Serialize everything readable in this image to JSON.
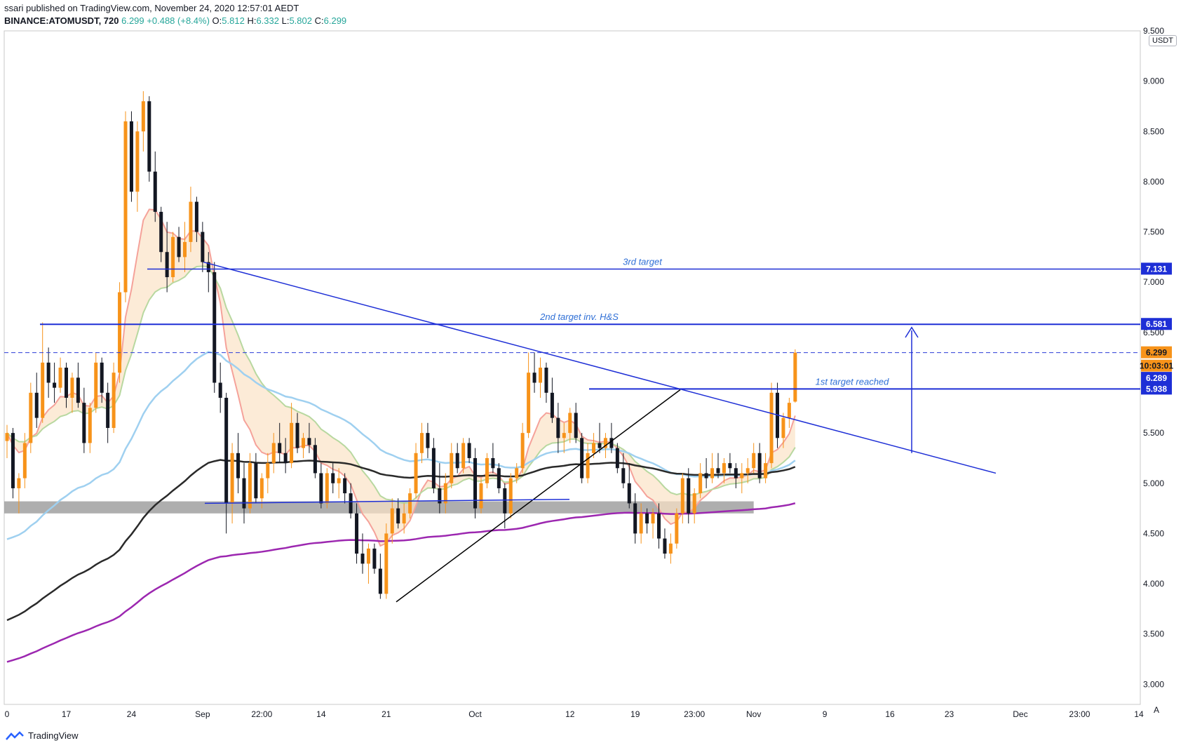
{
  "header": {
    "line1": "ssari published on TradingView.com, November 24, 2020 12:57:01 AEDT",
    "symbol": "BINANCE:ATOMUSDT, 720",
    "price": "6.299",
    "change": "+0.488 (+8.4%)",
    "ohlc": [
      {
        "label": "O:",
        "value": "5.812"
      },
      {
        "label": "H:",
        "value": "6.332"
      },
      {
        "label": "L:",
        "value": "5.802"
      },
      {
        "label": "C:",
        "value": "6.299"
      }
    ]
  },
  "footer": {
    "brand": "TradingView"
  },
  "axis_badges": {
    "currency": "USDT",
    "auto": "A"
  },
  "colors": {
    "up": "#f7931a",
    "down": "#131722",
    "blue_line": "#1e2fd6",
    "ema_light_blue": "#9fd0f0",
    "ema_black": "#2a2a2a",
    "ema_purple": "#9c27b0",
    "ribbon_red": "#f5a29a",
    "ribbon_green": "#b8d8a0",
    "ribbon_fill": "#fbe3c6",
    "support_band": "#a0a0a0"
  },
  "chart_data": {
    "type": "candlestick",
    "title": "",
    "ylim": [
      2.8,
      9.5
    ],
    "yticks": [
      3.0,
      3.5,
      4.0,
      4.5,
      5.0,
      5.5,
      6.0,
      6.5,
      7.0,
      7.5,
      8.0,
      8.5,
      9.0,
      9.5
    ],
    "ytick_labels": [
      "3.000",
      "3.500",
      "4.000",
      "4.500",
      "5.000",
      "5.500",
      "6.000",
      "6.500",
      "7.000",
      "7.500",
      "8.000",
      "8.500",
      "9.000",
      "9.500"
    ],
    "xlim": [
      0,
      193
    ],
    "xticks": [
      {
        "i": 0,
        "label": "0"
      },
      {
        "i": 10,
        "label": "17"
      },
      {
        "i": 21,
        "label": "24"
      },
      {
        "i": 33,
        "label": "Sep"
      },
      {
        "i": 43,
        "label": "22:00"
      },
      {
        "i": 53,
        "label": "14"
      },
      {
        "i": 64,
        "label": "21"
      },
      {
        "i": 79,
        "label": "Oct"
      },
      {
        "i": 95,
        "label": "12"
      },
      {
        "i": 106,
        "label": "19"
      },
      {
        "i": 116,
        "label": "23:00"
      },
      {
        "i": 126,
        "label": "Nov"
      },
      {
        "i": 138,
        "label": "9"
      },
      {
        "i": 149,
        "label": "16"
      },
      {
        "i": 159,
        "label": "23"
      },
      {
        "i": 171,
        "label": "Dec"
      },
      {
        "i": 181,
        "label": "23:00"
      },
      {
        "i": 191,
        "label": "14"
      }
    ],
    "candles": [
      [
        5.42,
        5.58,
        5.25,
        5.5
      ],
      [
        5.5,
        5.55,
        4.85,
        4.95
      ],
      [
        4.95,
        5.1,
        4.7,
        5.05
      ],
      [
        5.05,
        5.5,
        4.95,
        5.4
      ],
      [
        5.4,
        6.0,
        5.3,
        5.9
      ],
      [
        5.9,
        6.1,
        5.55,
        5.65
      ],
      [
        5.65,
        6.6,
        5.6,
        6.2
      ],
      [
        6.2,
        6.35,
        5.85,
        6.0
      ],
      [
        6.0,
        6.2,
        5.8,
        5.95
      ],
      [
        5.95,
        6.25,
        5.9,
        6.15
      ],
      [
        6.15,
        6.2,
        5.75,
        5.85
      ],
      [
        5.85,
        6.1,
        5.7,
        6.05
      ],
      [
        6.05,
        6.2,
        5.75,
        5.8
      ],
      [
        5.8,
        5.95,
        5.3,
        5.4
      ],
      [
        5.4,
        5.8,
        5.3,
        5.75
      ],
      [
        5.75,
        6.3,
        5.7,
        6.2
      ],
      [
        6.2,
        6.25,
        5.8,
        5.9
      ],
      [
        5.9,
        6.0,
        5.4,
        5.55
      ],
      [
        5.55,
        6.2,
        5.5,
        6.1
      ],
      [
        6.1,
        7.0,
        6.0,
        6.9
      ],
      [
        6.9,
        8.7,
        6.8,
        8.6
      ],
      [
        8.6,
        8.7,
        7.8,
        7.9
      ],
      [
        7.9,
        8.6,
        7.7,
        8.5
      ],
      [
        8.5,
        8.9,
        8.3,
        8.8
      ],
      [
        8.8,
        8.85,
        8.0,
        8.1
      ],
      [
        8.1,
        8.3,
        7.6,
        7.7
      ],
      [
        7.7,
        7.75,
        7.2,
        7.3
      ],
      [
        7.3,
        7.6,
        6.9,
        7.05
      ],
      [
        7.05,
        7.5,
        7.0,
        7.45
      ],
      [
        7.45,
        7.55,
        7.2,
        7.25
      ],
      [
        7.25,
        7.6,
        7.1,
        7.4
      ],
      [
        7.4,
        7.95,
        7.3,
        7.8
      ],
      [
        7.8,
        7.85,
        7.4,
        7.5
      ],
      [
        7.5,
        7.6,
        7.1,
        7.2
      ],
      [
        7.2,
        7.3,
        6.9,
        7.1
      ],
      [
        7.1,
        7.2,
        5.9,
        6.0
      ],
      [
        6.0,
        6.2,
        5.7,
        5.85
      ],
      [
        5.85,
        5.9,
        4.5,
        4.8
      ],
      [
        4.8,
        5.4,
        4.6,
        5.3
      ],
      [
        5.3,
        5.5,
        4.9,
        5.05
      ],
      [
        5.05,
        5.2,
        4.6,
        4.75
      ],
      [
        4.75,
        5.3,
        4.7,
        5.2
      ],
      [
        5.2,
        5.3,
        4.8,
        4.85
      ],
      [
        4.85,
        5.1,
        4.75,
        5.05
      ],
      [
        5.05,
        5.3,
        4.9,
        5.2
      ],
      [
        5.2,
        5.5,
        5.1,
        5.4
      ],
      [
        5.4,
        5.6,
        5.2,
        5.3
      ],
      [
        5.3,
        5.45,
        5.1,
        5.2
      ],
      [
        5.2,
        5.8,
        5.15,
        5.6
      ],
      [
        5.6,
        5.7,
        5.3,
        5.35
      ],
      [
        5.35,
        5.5,
        5.25,
        5.45
      ],
      [
        5.45,
        5.6,
        5.3,
        5.38
      ],
      [
        5.38,
        5.45,
        5.05,
        5.1
      ],
      [
        5.1,
        5.2,
        4.75,
        4.8
      ],
      [
        4.8,
        5.15,
        4.75,
        5.1
      ],
      [
        5.1,
        5.2,
        4.9,
        5.0
      ],
      [
        5.0,
        5.15,
        4.85,
        5.05
      ],
      [
        5.05,
        5.1,
        4.8,
        4.9
      ],
      [
        4.9,
        5.0,
        4.65,
        4.7
      ],
      [
        4.7,
        4.8,
        4.2,
        4.3
      ],
      [
        4.3,
        4.5,
        4.1,
        4.2
      ],
      [
        4.2,
        4.4,
        4.0,
        4.35
      ],
      [
        4.35,
        4.4,
        4.1,
        4.15
      ],
      [
        4.15,
        4.3,
        3.85,
        3.9
      ],
      [
        3.9,
        4.6,
        3.85,
        4.5
      ],
      [
        4.5,
        4.85,
        4.4,
        4.75
      ],
      [
        4.75,
        4.85,
        4.55,
        4.6
      ],
      [
        4.6,
        4.8,
        4.5,
        4.7
      ],
      [
        4.7,
        4.95,
        4.65,
        4.9
      ],
      [
        4.9,
        5.4,
        4.85,
        5.3
      ],
      [
        5.3,
        5.6,
        5.2,
        5.5
      ],
      [
        5.5,
        5.6,
        5.25,
        5.35
      ],
      [
        5.35,
        5.45,
        4.9,
        4.95
      ],
      [
        4.95,
        5.2,
        4.7,
        4.8
      ],
      [
        4.8,
        5.1,
        4.7,
        5.0
      ],
      [
        5.0,
        5.4,
        4.95,
        5.3
      ],
      [
        5.3,
        5.4,
        5.1,
        5.15
      ],
      [
        5.15,
        5.45,
        5.1,
        5.4
      ],
      [
        5.4,
        5.45,
        5.2,
        5.25
      ],
      [
        5.25,
        5.35,
        4.65,
        4.75
      ],
      [
        4.75,
        5.05,
        4.7,
        5.0
      ],
      [
        5.0,
        5.3,
        4.95,
        5.25
      ],
      [
        5.25,
        5.4,
        5.1,
        5.15
      ],
      [
        5.15,
        5.2,
        4.9,
        4.95
      ],
      [
        4.95,
        5.0,
        4.55,
        4.7
      ],
      [
        4.7,
        5.1,
        4.65,
        5.05
      ],
      [
        5.05,
        5.2,
        5.0,
        5.15
      ],
      [
        5.15,
        5.6,
        5.1,
        5.5
      ],
      [
        5.5,
        6.3,
        5.45,
        6.1
      ],
      [
        6.1,
        6.3,
        5.9,
        6.0
      ],
      [
        6.0,
        6.25,
        5.85,
        6.15
      ],
      [
        6.15,
        6.2,
        5.8,
        5.9
      ],
      [
        5.9,
        6.05,
        5.6,
        5.65
      ],
      [
        5.65,
        5.8,
        5.3,
        5.45
      ],
      [
        5.45,
        5.6,
        5.3,
        5.5
      ],
      [
        5.5,
        5.75,
        5.4,
        5.7
      ],
      [
        5.7,
        5.8,
        5.4,
        5.45
      ],
      [
        5.45,
        5.5,
        5.0,
        5.05
      ],
      [
        5.05,
        5.4,
        5.0,
        5.3
      ],
      [
        5.3,
        5.5,
        5.25,
        5.4
      ],
      [
        5.4,
        5.6,
        5.3,
        5.35
      ],
      [
        5.35,
        5.5,
        5.25,
        5.45
      ],
      [
        5.45,
        5.6,
        5.3,
        5.35
      ],
      [
        5.35,
        5.4,
        5.1,
        5.15
      ],
      [
        5.15,
        5.3,
        4.95,
        5.0
      ],
      [
        5.0,
        5.2,
        4.75,
        4.8
      ],
      [
        4.8,
        4.9,
        4.4,
        4.5
      ],
      [
        4.5,
        4.8,
        4.4,
        4.7
      ],
      [
        4.7,
        4.75,
        4.5,
        4.6
      ],
      [
        4.6,
        4.75,
        4.45,
        4.7
      ],
      [
        4.7,
        4.8,
        4.35,
        4.45
      ],
      [
        4.45,
        4.55,
        4.25,
        4.3
      ],
      [
        4.3,
        4.5,
        4.2,
        4.4
      ],
      [
        4.4,
        4.75,
        4.35,
        4.7
      ],
      [
        4.7,
        5.1,
        4.6,
        5.05
      ],
      [
        5.05,
        5.15,
        4.6,
        4.7
      ],
      [
        4.7,
        4.95,
        4.6,
        4.9
      ],
      [
        4.9,
        5.2,
        4.85,
        5.1
      ],
      [
        5.1,
        5.25,
        4.95,
        5.05
      ],
      [
        5.05,
        5.3,
        5.0,
        5.15
      ],
      [
        5.15,
        5.3,
        5.05,
        5.1
      ],
      [
        5.1,
        5.25,
        5.0,
        5.2
      ],
      [
        5.2,
        5.3,
        5.1,
        5.15
      ],
      [
        5.15,
        5.2,
        4.95,
        5.05
      ],
      [
        5.05,
        5.2,
        4.9,
        5.1
      ],
      [
        5.1,
        5.25,
        5.0,
        5.15
      ],
      [
        5.15,
        5.4,
        5.1,
        5.3
      ],
      [
        5.3,
        5.4,
        5.0,
        5.05
      ],
      [
        5.05,
        5.3,
        5.0,
        5.2
      ],
      [
        5.2,
        6.0,
        5.15,
        5.9
      ],
      [
        5.9,
        6.0,
        5.35,
        5.45
      ],
      [
        5.45,
        5.7,
        5.35,
        5.65
      ],
      [
        5.65,
        5.85,
        5.55,
        5.8
      ],
      [
        5.812,
        6.332,
        5.802,
        6.299
      ]
    ],
    "candle_start_index": 0,
    "recent_candles": {
      "start_index": 152,
      "note": ""
    },
    "price_levels": [
      {
        "value": 7.131,
        "label": "3rd target",
        "axis": "7.131"
      },
      {
        "value": 6.581,
        "label": "2nd target inv. H&S",
        "axis": "6.581"
      },
      {
        "value": 5.938,
        "label": "1st target reached",
        "axis": "5.938"
      }
    ],
    "last_price": {
      "value": 6.299,
      "label": "6.299",
      "countdown": "10:03:01"
    },
    "level_6289": {
      "value": 6.289,
      "label": "6.289"
    }
  }
}
